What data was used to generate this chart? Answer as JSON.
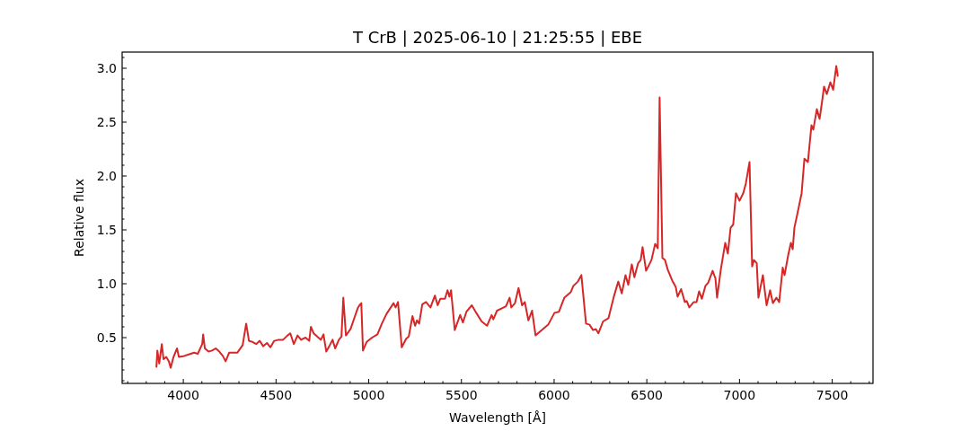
{
  "chart_data": {
    "type": "line",
    "title": "T CrB | 2025-06-10 | 21:25:55 | EBE",
    "xlabel": "Wavelength [Å]",
    "ylabel": "Relative flux",
    "xlim": [
      3670,
      7720
    ],
    "ylim": [
      0.075,
      3.15
    ],
    "xticks": [
      {
        "value": 3700,
        "label": null
      },
      {
        "value": 3800,
        "label": null
      },
      {
        "value": 3900,
        "label": null
      },
      4000,
      {
        "value": 4100,
        "label": null
      },
      {
        "value": 4200,
        "label": null
      },
      {
        "value": 4300,
        "label": null
      },
      {
        "value": 4400,
        "label": null
      },
      4500,
      {
        "value": 4600,
        "label": null
      },
      {
        "value": 4700,
        "label": null
      },
      {
        "value": 4800,
        "label": null
      },
      {
        "value": 4900,
        "label": null
      },
      5000,
      {
        "value": 5100,
        "label": null
      },
      {
        "value": 5200,
        "label": null
      },
      {
        "value": 5300,
        "label": null
      },
      {
        "value": 5400,
        "label": null
      },
      5500,
      {
        "value": 5600,
        "label": null
      },
      {
        "value": 5700,
        "label": null
      },
      {
        "value": 5800,
        "label": null
      },
      {
        "value": 5900,
        "label": null
      },
      6000,
      {
        "value": 6100,
        "label": null
      },
      {
        "value": 6200,
        "label": null
      },
      {
        "value": 6300,
        "label": null
      },
      {
        "value": 6400,
        "label": null
      },
      6500,
      {
        "value": 6600,
        "label": null
      },
      {
        "value": 6700,
        "label": null
      },
      {
        "value": 6800,
        "label": null
      },
      {
        "value": 6900,
        "label": null
      },
      7000,
      {
        "value": 7100,
        "label": null
      },
      {
        "value": 7200,
        "label": null
      },
      {
        "value": 7300,
        "label": null
      },
      {
        "value": 7400,
        "label": null
      },
      7500,
      {
        "value": 7600,
        "label": null
      },
      {
        "value": 7700,
        "label": null
      }
    ],
    "yticks": [
      {
        "value": 0.1,
        "label": null
      },
      {
        "value": 0.2,
        "label": null
      },
      {
        "value": 0.3,
        "label": null
      },
      {
        "value": 0.4,
        "label": null
      },
      {
        "value": 0.5,
        "label": "0.5"
      },
      {
        "value": 0.6,
        "label": null
      },
      {
        "value": 0.7,
        "label": null
      },
      {
        "value": 0.8,
        "label": null
      },
      {
        "value": 0.9,
        "label": null
      },
      {
        "value": 1.0,
        "label": "1.0"
      },
      {
        "value": 1.1,
        "label": null
      },
      {
        "value": 1.2,
        "label": null
      },
      {
        "value": 1.3,
        "label": null
      },
      {
        "value": 1.4,
        "label": null
      },
      {
        "value": 1.5,
        "label": "1.5"
      },
      {
        "value": 1.6,
        "label": null
      },
      {
        "value": 1.7,
        "label": null
      },
      {
        "value": 1.8,
        "label": null
      },
      {
        "value": 1.9,
        "label": null
      },
      {
        "value": 2.0,
        "label": "2.0"
      },
      {
        "value": 2.1,
        "label": null
      },
      {
        "value": 2.2,
        "label": null
      },
      {
        "value": 2.3,
        "label": null
      },
      {
        "value": 2.4,
        "label": null
      },
      {
        "value": 2.5,
        "label": "2.5"
      },
      {
        "value": 2.6,
        "label": null
      },
      {
        "value": 2.7,
        "label": null
      },
      {
        "value": 2.8,
        "label": null
      },
      {
        "value": 2.9,
        "label": null
      },
      {
        "value": 3.0,
        "label": "3.0"
      },
      {
        "value": 3.1,
        "label": null
      }
    ],
    "grid": false,
    "marker": "none",
    "line_style": "solid",
    "series": [
      {
        "color": "#d62728",
        "x": [
          3855,
          3860,
          3870,
          3884,
          3893,
          3908,
          3922,
          3932,
          3947,
          3966,
          3976,
          4005,
          4040,
          4058,
          4078,
          4102,
          4107,
          4116,
          4136,
          4155,
          4175,
          4194,
          4213,
          4228,
          4247,
          4267,
          4291,
          4320,
          4339,
          4354,
          4373,
          4393,
          4412,
          4431,
          4451,
          4470,
          4490,
          4514,
          4538,
          4562,
          4577,
          4596,
          4616,
          4635,
          4659,
          4679,
          4688,
          4703,
          4722,
          4742,
          4756,
          4771,
          4790,
          4805,
          4819,
          4839,
          4853,
          4863,
          4877,
          4902,
          4926,
          4940,
          4950,
          4960,
          4969,
          4989,
          5018,
          5047,
          5071,
          5096,
          5134,
          5145,
          5158,
          5178,
          5202,
          5216,
          5236,
          5250,
          5260,
          5272,
          5289,
          5309,
          5333,
          5357,
          5372,
          5386,
          5411,
          5425,
          5435,
          5444,
          5464,
          5493,
          5508,
          5527,
          5556,
          5580,
          5609,
          5638,
          5663,
          5672,
          5692,
          5716,
          5740,
          5760,
          5769,
          5789,
          5808,
          5827,
          5842,
          5861,
          5881,
          5900,
          5934,
          5968,
          6002,
          6026,
          6055,
          6089,
          6104,
          6128,
          6147,
          6172,
          6191,
          6210,
          6225,
          6239,
          6264,
          6293,
          6322,
          6346,
          6365,
          6385,
          6400,
          6419,
          6433,
          6453,
          6467,
          6477,
          6496,
          6525,
          6545,
          6559,
          6569,
          6584,
          6598,
          6613,
          6637,
          6656,
          6666,
          6685,
          6705,
          6715,
          6729,
          6753,
          6768,
          6782,
          6797,
          6816,
          6831,
          6855,
          6870,
          6879,
          6899,
          6923,
          6937,
          6952,
          6966,
          6981,
          7000,
          7020,
          7034,
          7054,
          7068,
          7078,
          7093,
          7102,
          7126,
          7146,
          7165,
          7180,
          7199,
          7214,
          7233,
          7243,
          7262,
          7277,
          7287,
          7296,
          7311,
          7335,
          7350,
          7369,
          7388,
          7398,
          7417,
          7432,
          7446,
          7456,
          7471,
          7490,
          7505,
          7522,
          7530
        ],
        "values": [
          0.23,
          0.38,
          0.26,
          0.44,
          0.3,
          0.32,
          0.28,
          0.22,
          0.32,
          0.4,
          0.32,
          0.33,
          0.35,
          0.36,
          0.35,
          0.44,
          0.53,
          0.4,
          0.37,
          0.38,
          0.4,
          0.37,
          0.33,
          0.28,
          0.36,
          0.36,
          0.36,
          0.43,
          0.63,
          0.47,
          0.46,
          0.44,
          0.47,
          0.42,
          0.45,
          0.41,
          0.47,
          0.48,
          0.48,
          0.52,
          0.54,
          0.44,
          0.52,
          0.48,
          0.5,
          0.47,
          0.6,
          0.54,
          0.51,
          0.48,
          0.53,
          0.37,
          0.43,
          0.48,
          0.4,
          0.48,
          0.51,
          0.87,
          0.52,
          0.58,
          0.7,
          0.77,
          0.8,
          0.82,
          0.38,
          0.46,
          0.5,
          0.53,
          0.63,
          0.72,
          0.82,
          0.78,
          0.83,
          0.41,
          0.49,
          0.51,
          0.7,
          0.61,
          0.66,
          0.63,
          0.81,
          0.83,
          0.78,
          0.89,
          0.8,
          0.86,
          0.86,
          0.94,
          0.88,
          0.94,
          0.57,
          0.71,
          0.64,
          0.74,
          0.8,
          0.73,
          0.65,
          0.61,
          0.71,
          0.67,
          0.75,
          0.77,
          0.79,
          0.87,
          0.78,
          0.82,
          0.96,
          0.8,
          0.83,
          0.66,
          0.75,
          0.52,
          0.57,
          0.62,
          0.73,
          0.74,
          0.87,
          0.92,
          0.98,
          1.02,
          1.08,
          0.63,
          0.62,
          0.57,
          0.58,
          0.54,
          0.65,
          0.68,
          0.88,
          1.02,
          0.91,
          1.08,
          0.99,
          1.18,
          1.06,
          1.19,
          1.22,
          1.34,
          1.12,
          1.22,
          1.37,
          1.33,
          2.73,
          1.24,
          1.22,
          1.13,
          1.03,
          0.97,
          0.88,
          0.95,
          0.83,
          0.84,
          0.78,
          0.83,
          0.83,
          0.93,
          0.86,
          0.98,
          1.01,
          1.12,
          1.05,
          0.87,
          1.13,
          1.38,
          1.28,
          1.52,
          1.55,
          1.84,
          1.77,
          1.84,
          1.93,
          2.13,
          1.16,
          1.22,
          1.19,
          0.87,
          1.08,
          0.8,
          0.94,
          0.82,
          0.87,
          0.83,
          1.15,
          1.08,
          1.26,
          1.38,
          1.32,
          1.52,
          1.64,
          1.84,
          2.16,
          2.13,
          2.47,
          2.43,
          2.62,
          2.53,
          2.7,
          2.83,
          2.76,
          2.87,
          2.8,
          3.02,
          2.93
        ]
      }
    ]
  }
}
